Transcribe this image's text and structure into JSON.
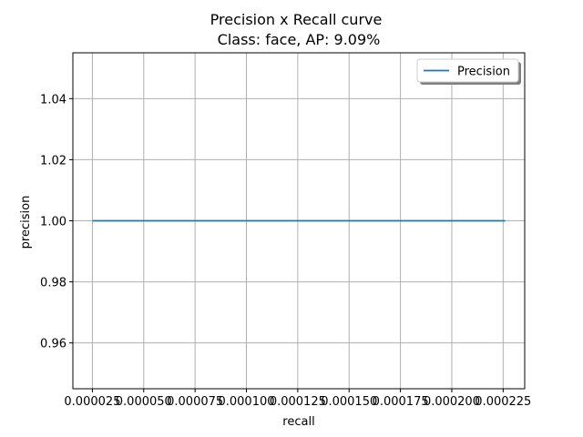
{
  "chart_data": {
    "type": "line",
    "title": "Precision x Recall curve",
    "subtitle": "Class: face, AP: 9.09%",
    "xlabel": "recall",
    "ylabel": "precision",
    "xlim": [
      1.55e-05,
      0.0002355
    ],
    "ylim": [
      0.945,
      1.055
    ],
    "x_ticks": [
      2.5e-05,
      5e-05,
      7.5e-05,
      0.0001,
      0.000125,
      0.00015,
      0.000175,
      0.0002,
      0.000225
    ],
    "x_tick_labels": [
      "0.000025",
      "0.000050",
      "0.000075",
      "0.000100",
      "0.000125",
      "0.000150",
      "0.000175",
      "0.000200",
      "0.000225"
    ],
    "y_ticks": [
      0.96,
      0.98,
      1.0,
      1.02,
      1.04
    ],
    "y_tick_labels": [
      "0.96",
      "0.98",
      "1.00",
      "1.02",
      "1.04"
    ],
    "grid": true,
    "legend_position": "top-right",
    "series": [
      {
        "name": "Precision",
        "color": "#1f77b4",
        "x": [
          2.5e-05,
          0.000226
        ],
        "y": [
          1.0,
          1.0
        ]
      }
    ]
  }
}
